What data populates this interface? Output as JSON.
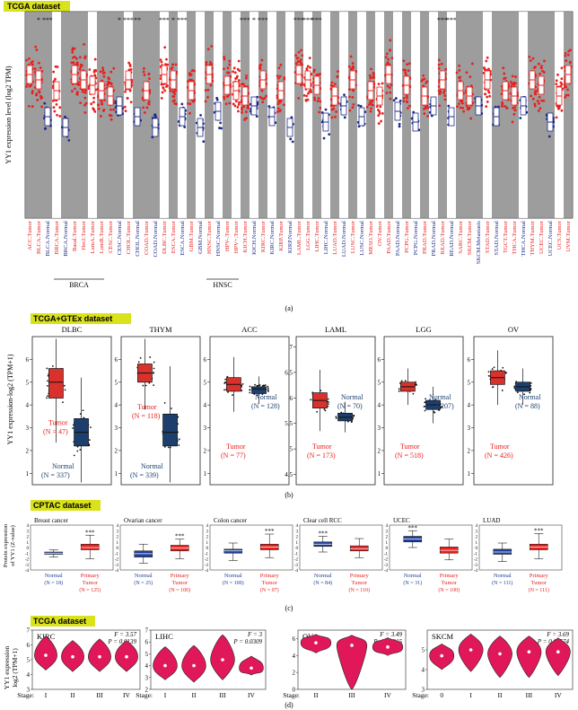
{
  "panel_a": {
    "dataset_label": "TCGA dataset",
    "ylabel": "YY1 expression level (log2 TPM)",
    "caption": "(a)",
    "columns": [
      {
        "label": "ACC.Tumor",
        "kind": "tumor",
        "sig": ""
      },
      {
        "label": "BLCA.Tumor",
        "kind": "tumor",
        "sig": "*"
      },
      {
        "label": "BLCA.Normal",
        "kind": "normal",
        "sig": "***"
      },
      {
        "label": "BRCA.Tumor",
        "kind": "tumor",
        "sig": ""
      },
      {
        "label": "BRCA.Normal",
        "kind": "normal",
        "sig": ""
      },
      {
        "label": "Basal.Tumor",
        "kind": "tumor",
        "sig": ""
      },
      {
        "label": "Her2.Tumor",
        "kind": "tumor",
        "sig": ""
      },
      {
        "label": "LumA.Tumor",
        "kind": "tumor",
        "sig": ""
      },
      {
        "label": "LumB.Tumor",
        "kind": "tumor",
        "sig": ""
      },
      {
        "label": "CESC.Tumor",
        "kind": "tumor",
        "sig": ""
      },
      {
        "label": "CESC.Normal",
        "kind": "normal",
        "sig": "*"
      },
      {
        "label": "CHOL.Tumor",
        "kind": "tumor",
        "sig": "***"
      },
      {
        "label": "CHOL.Normal",
        "kind": "normal",
        "sig": "**"
      },
      {
        "label": "COAD.Tumor",
        "kind": "tumor",
        "sig": ""
      },
      {
        "label": "COAD.Normal",
        "kind": "normal",
        "sig": ""
      },
      {
        "label": "DLBC.Tumor",
        "kind": "tumor",
        "sig": "***"
      },
      {
        "label": "ESCA.Tumor",
        "kind": "tumor",
        "sig": "*"
      },
      {
        "label": "ESCA.Normal",
        "kind": "normal",
        "sig": "***"
      },
      {
        "label": "GBM.Tumor",
        "kind": "tumor",
        "sig": ""
      },
      {
        "label": "GBM.Normal",
        "kind": "normal",
        "sig": ""
      },
      {
        "label": "HNSC.Tumor",
        "kind": "tumor",
        "sig": ""
      },
      {
        "label": "HNSC.Normal",
        "kind": "normal",
        "sig": ""
      },
      {
        "label": "HPV-.Tumor",
        "kind": "tumor",
        "sig": ""
      },
      {
        "label": "HPV+.Tumor",
        "kind": "tumor",
        "sig": ""
      },
      {
        "label": "KICH.Tumor",
        "kind": "tumor",
        "sig": "***"
      },
      {
        "label": "KICH.Normal",
        "kind": "normal",
        "sig": "*"
      },
      {
        "label": "KIRC.Tumor",
        "kind": "tumor",
        "sig": "***"
      },
      {
        "label": "KIRC.Normal",
        "kind": "normal",
        "sig": ""
      },
      {
        "label": "KIRP.Tumor",
        "kind": "tumor",
        "sig": ""
      },
      {
        "label": "KIRP.Normal",
        "kind": "normal",
        "sig": ""
      },
      {
        "label": "LAML.Tumor",
        "kind": "tumor",
        "sig": "***"
      },
      {
        "label": "LGG.Tumor",
        "kind": "tumor",
        "sig": "***"
      },
      {
        "label": "LIHC.Tumor",
        "kind": "tumor",
        "sig": "***"
      },
      {
        "label": "LIHC.Normal",
        "kind": "normal",
        "sig": ""
      },
      {
        "label": "LUAD.Tumor",
        "kind": "tumor",
        "sig": ""
      },
      {
        "label": "LUAD.Normal",
        "kind": "normal",
        "sig": ""
      },
      {
        "label": "LUSC.Tumor",
        "kind": "tumor",
        "sig": ""
      },
      {
        "label": "LUSC.Normal",
        "kind": "normal",
        "sig": ""
      },
      {
        "label": "MESO.Tumor",
        "kind": "tumor",
        "sig": ""
      },
      {
        "label": "OV.Tumor",
        "kind": "tumor",
        "sig": ""
      },
      {
        "label": "PAAD.Tumor",
        "kind": "tumor",
        "sig": ""
      },
      {
        "label": "PAAD.Normal",
        "kind": "normal",
        "sig": ""
      },
      {
        "label": "PCPG.Tumor",
        "kind": "tumor",
        "sig": ""
      },
      {
        "label": "PCPG.Normal",
        "kind": "normal",
        "sig": ""
      },
      {
        "label": "PRAD.Tumor",
        "kind": "tumor",
        "sig": ""
      },
      {
        "label": "PRAD.Normal",
        "kind": "normal",
        "sig": ""
      },
      {
        "label": "READ.Tumor",
        "kind": "tumor",
        "sig": "***"
      },
      {
        "label": "READ.Normal",
        "kind": "normal",
        "sig": "***"
      },
      {
        "label": "SARC.Tumor",
        "kind": "tumor",
        "sig": ""
      },
      {
        "label": "SKCM.Tumor",
        "kind": "tumor",
        "sig": ""
      },
      {
        "label": "SKCM.Metastasis",
        "kind": "normal",
        "sig": ""
      },
      {
        "label": "STAD.Tumor",
        "kind": "tumor",
        "sig": ""
      },
      {
        "label": "STAD.Normal",
        "kind": "normal",
        "sig": ""
      },
      {
        "label": "TGCT.Tumor",
        "kind": "tumor",
        "sig": ""
      },
      {
        "label": "THCA.Tumor",
        "kind": "tumor",
        "sig": ""
      },
      {
        "label": "THCA.Normal",
        "kind": "normal",
        "sig": ""
      },
      {
        "label": "THYM.Tumor",
        "kind": "tumor",
        "sig": ""
      },
      {
        "label": "UCEC.Tumor",
        "kind": "tumor",
        "sig": ""
      },
      {
        "label": "UCEC.Normal",
        "kind": "normal",
        "sig": ""
      },
      {
        "label": "UCS.Tumor",
        "kind": "tumor",
        "sig": ""
      },
      {
        "label": "UVM.Tumor",
        "kind": "tumor",
        "sig": ""
      }
    ],
    "group_labels": [
      {
        "text": "BRCA"
      },
      {
        "text": "HNSC"
      }
    ]
  },
  "panel_b": {
    "dataset_label": "TCGA+GTEx dataset",
    "ylabel": "YY1 expression-log2 (TPM+1)",
    "caption": "(b)",
    "plots": [
      {
        "title": "DLBC",
        "yticks": [
          1,
          2,
          3,
          4,
          5,
          6
        ],
        "ylim": [
          0.5,
          7
        ],
        "tumor": "Tumor",
        "tumor_n": "(N = 47)",
        "normal": "Normal",
        "normal_n": "(N = 337)",
        "tumor_box": [
          4.3,
          5.0,
          5.6
        ],
        "normal_box": [
          2.2,
          2.8,
          3.4
        ]
      },
      {
        "title": "THYM",
        "yticks": [
          1,
          2,
          3,
          4,
          5,
          6
        ],
        "ylim": [
          0.5,
          7
        ],
        "tumor": "Tumor",
        "tumor_n": "(N = 118)",
        "normal": "Normal",
        "normal_n": "(N = 339)",
        "tumor_box": [
          5.0,
          5.4,
          5.8
        ],
        "normal_box": [
          2.2,
          2.8,
          3.6
        ]
      },
      {
        "title": "ACC",
        "yticks": [
          1,
          2,
          3,
          4,
          5,
          6
        ],
        "ylim": [
          0.5,
          7
        ],
        "tumor": "Tumor",
        "tumor_n": "(N = 77)",
        "normal": "Normal",
        "normal_n": "(N = 128)",
        "tumor_box": [
          4.6,
          4.9,
          5.2
        ],
        "normal_box": [
          4.5,
          4.7,
          4.8
        ]
      },
      {
        "title": "LAML",
        "yticks": [
          4.5,
          5.0,
          5.5,
          6.0,
          6.5,
          7.0
        ],
        "ylim": [
          4.3,
          7.2
        ],
        "tumor": "Tumor",
        "tumor_n": "(N = 173)",
        "normal": "Normal",
        "normal_n": "(N = 70)",
        "tumor_box": [
          5.8,
          5.95,
          6.1
        ],
        "normal_box": [
          5.55,
          5.62,
          5.7
        ]
      },
      {
        "title": "LGG",
        "yticks": [
          1,
          2,
          3,
          4,
          5,
          6
        ],
        "ylim": [
          0.5,
          7
        ],
        "tumor": "Tumor",
        "tumor_n": "(N = 518)",
        "normal": "Normal",
        "normal_n": "(N = 207)",
        "tumor_box": [
          4.6,
          4.8,
          5.0
        ],
        "normal_box": [
          3.8,
          4.0,
          4.2
        ]
      },
      {
        "title": "OV",
        "yticks": [
          1,
          2,
          3,
          4,
          5,
          6
        ],
        "ylim": [
          0.5,
          7
        ],
        "tumor": "Tumor",
        "tumor_n": "(N = 426)",
        "normal": "Normal",
        "normal_n": "(N = 88)",
        "tumor_box": [
          4.9,
          5.2,
          5.5
        ],
        "normal_box": [
          4.6,
          4.8,
          5.0
        ]
      }
    ]
  },
  "panel_c": {
    "dataset_label": "CPTAC dataset",
    "ylabel_line1": "Protein expression",
    "ylabel_line2": "of YY1 (Z-value)",
    "caption": "(c)",
    "yticks": [
      -4,
      -3,
      -2,
      -1,
      0,
      1,
      2,
      3,
      4
    ],
    "ylim": [
      -4,
      4
    ],
    "plots": [
      {
        "title": "Breast cancer",
        "sig": "***",
        "groups": [
          {
            "label": "Normal",
            "n": "(N = 18)",
            "kind": "normal",
            "box": [
              -1.2,
              -1.0,
              -0.8
            ],
            "whisk": [
              -1.7,
              -0.4
            ]
          },
          {
            "label": "Primary",
            "label2": "Tumor",
            "n": "(N = 125)",
            "kind": "tumor",
            "box": [
              -0.4,
              0.0,
              0.6
            ],
            "whisk": [
              -2.0,
              2.2
            ]
          }
        ]
      },
      {
        "title": "Ovarian cancer",
        "sig": "***",
        "groups": [
          {
            "label": "Normal",
            "n": "(N = 25)",
            "kind": "normal",
            "box": [
              -1.7,
              -1.1,
              -0.6
            ],
            "whisk": [
              -2.8,
              0.6
            ]
          },
          {
            "label": "Primary",
            "label2": "Tumor",
            "n": "(N = 100)",
            "kind": "tumor",
            "box": [
              -0.6,
              -0.1,
              0.4
            ],
            "whisk": [
              -2.0,
              1.5
            ]
          }
        ]
      },
      {
        "title": "Colon cancer",
        "sig": "***",
        "groups": [
          {
            "label": "Normal",
            "n": "(N = 100)",
            "kind": "normal",
            "box": [
              -1.0,
              -0.6,
              -0.3
            ],
            "whisk": [
              -2.3,
              0.8
            ]
          },
          {
            "label": "Primary",
            "label2": "Tumor",
            "n": "(N = 97)",
            "kind": "tumor",
            "box": [
              -0.4,
              0.1,
              0.6
            ],
            "whisk": [
              -1.8,
              2.4
            ]
          }
        ]
      },
      {
        "title": "Clear cell RCC",
        "sig": "***",
        "groups": [
          {
            "label": "Normal",
            "n": "(N = 84)",
            "kind": "normal",
            "box": [
              0.2,
              0.6,
              1.0
            ],
            "whisk": [
              -0.8,
              2.0
            ]
          },
          {
            "label": "Primary",
            "label2": "Tumor",
            "n": "(N = 110)",
            "kind": "tumor",
            "box": [
              -0.6,
              -0.2,
              0.3
            ],
            "whisk": [
              -1.8,
              1.6
            ]
          }
        ]
      },
      {
        "title": "UCEC",
        "sig": "***",
        "groups": [
          {
            "label": "Normal",
            "n": "(N = 31)",
            "kind": "normal",
            "box": [
              1.0,
              1.5,
              2.0
            ],
            "whisk": [
              0.0,
              3.0
            ]
          },
          {
            "label": "Primary",
            "label2": "Tumor",
            "n": "(N = 100)",
            "kind": "tumor",
            "box": [
              -1.0,
              -0.5,
              0.1
            ],
            "whisk": [
              -2.2,
              1.5
            ]
          }
        ]
      },
      {
        "title": "LUAD",
        "sig": "***",
        "groups": [
          {
            "label": "Normal",
            "n": "(N = 111)",
            "kind": "normal",
            "box": [
              -1.2,
              -0.8,
              -0.3
            ],
            "whisk": [
              -2.5,
              0.8
            ]
          },
          {
            "label": "Primary",
            "label2": "Tumor",
            "n": "(N = 111)",
            "kind": "tumor",
            "box": [
              -0.4,
              0.1,
              0.6
            ],
            "whisk": [
              -2.0,
              2.5
            ]
          }
        ]
      }
    ]
  },
  "panel_d": {
    "dataset_label": "TCGA dataset",
    "ylabel_line1": "YY1 expression",
    "ylabel_line2": "log2 (TPM+1)",
    "caption": "(d)",
    "stage_label": "Stage:",
    "plots": [
      {
        "title": "KIRC",
        "stat_f": "F = 3.57",
        "stat_p": "P = 0.0139",
        "ylim": [
          3,
          7
        ],
        "yticks": [
          3,
          4,
          5,
          6,
          7
        ],
        "stages": [
          "I",
          "II",
          "III",
          "IV"
        ],
        "medians": [
          5.3,
          5.2,
          5.2,
          5.2
        ],
        "ranges": [
          [
            4.3,
            6.6
          ],
          [
            4.2,
            6.3
          ],
          [
            4.2,
            6.4
          ],
          [
            4.2,
            6.3
          ]
        ]
      },
      {
        "title": "LIHC",
        "stat_f": "F = 3",
        "stat_p": "P = 0.0309",
        "ylim": [
          2,
          7
        ],
        "yticks": [
          2,
          3,
          4,
          5,
          6,
          7
        ],
        "stages": [
          "I",
          "II",
          "III",
          "IV"
        ],
        "medians": [
          4.0,
          4.0,
          4.5,
          3.8
        ],
        "ranges": [
          [
            2.8,
            5.6
          ],
          [
            2.6,
            5.7
          ],
          [
            2.8,
            6.6
          ],
          [
            3.2,
            4.8
          ]
        ]
      },
      {
        "title": "OV",
        "stat_f": "F = 3.49",
        "stat_p": "P = 0.0315",
        "ylim": [
          0,
          7
        ],
        "yticks": [
          0,
          2,
          4,
          6
        ],
        "stages": [
          "II",
          "III",
          "IV"
        ],
        "medians": [
          5.5,
          5.2,
          5.0
        ],
        "ranges": [
          [
            4.3,
            6.5
          ],
          [
            0.0,
            6.4
          ],
          [
            4.0,
            6.1
          ]
        ]
      },
      {
        "title": "SKCM",
        "stat_f": "F = 3.69",
        "stat_p": "P = 0.00574",
        "ylim": [
          3,
          6
        ],
        "yticks": [
          3,
          4,
          5
        ],
        "stages": [
          "0",
          "I",
          "II",
          "III",
          "IV"
        ],
        "medians": [
          4.7,
          5.0,
          4.8,
          4.9,
          4.9
        ],
        "ranges": [
          [
            4.0,
            5.3
          ],
          [
            3.9,
            5.8
          ],
          [
            3.6,
            5.7
          ],
          [
            3.6,
            5.7
          ],
          [
            3.7,
            5.6
          ]
        ]
      }
    ]
  },
  "colors": {
    "tumor": "#e8211f",
    "normal": "#1f2b8a",
    "bg_gray": "#8c8c8c",
    "violin": "#e0185a",
    "label_bg": "#d9e21a",
    "tumor_box": "#d9312c",
    "normal_box": "#1c3f6e",
    "cptac_normal": "#1f3f9a"
  }
}
